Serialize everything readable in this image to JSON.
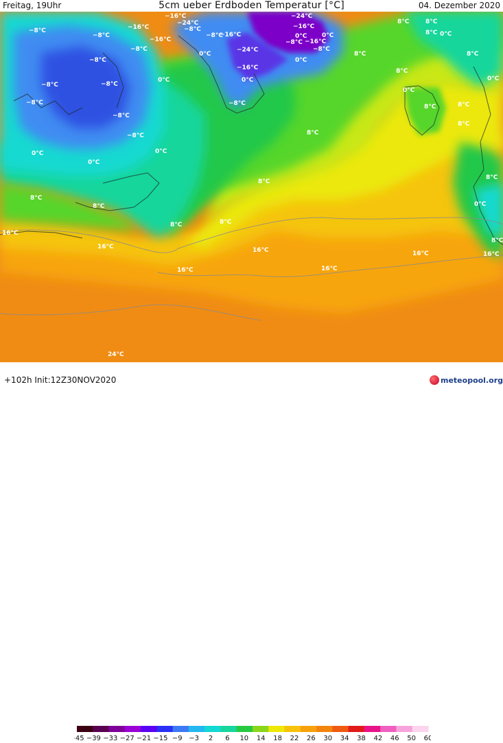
{
  "header": {
    "left_text": "Freitag, 19Uhr",
    "title": "5cm ueber Erdboden Temperatur [°C]",
    "date": "04. Dezember 2020"
  },
  "map": {
    "labels": [
      "−24°C",
      "−16°C",
      "−8°C",
      "0°C",
      "8°C",
      "16°C",
      "24°C"
    ],
    "palette": {
      "cold_purple": "#7c00c8",
      "deep_blue": "#2e51e2",
      "blue": "#3f8cf2",
      "cyan": "#12d9d1",
      "teal": "#19d69b",
      "green": "#23c84a",
      "light_green": "#57d62a",
      "lime": "#c9e812",
      "yellow": "#ece807",
      "gold": "#f5c40c",
      "orange": "#f7a50c",
      "dark_orange": "#f08c14"
    }
  },
  "legend": {
    "ticks": [
      "−45",
      "−39",
      "−33",
      "−27",
      "−21",
      "−15",
      "−9",
      "−3",
      "2",
      "6",
      "10",
      "14",
      "18",
      "22",
      "26",
      "30",
      "34",
      "38",
      "42",
      "46",
      "50",
      "60"
    ],
    "colors": [
      "#3b0012",
      "#5a0050",
      "#80009a",
      "#9b00d6",
      "#5a00f5",
      "#2a30f5",
      "#3c7af5",
      "#24b8f0",
      "#12d9d1",
      "#17d69d",
      "#27c941",
      "#8ad61b",
      "#ede807",
      "#f7c20a",
      "#f7a20c",
      "#f2850e",
      "#ef5b10",
      "#e31a1a",
      "#e8128a",
      "#f060c0",
      "#f8a4dc",
      "#fcd4ee"
    ]
  },
  "footer": {
    "run_info": "+102h Init:12Z30NOV2020",
    "brand": "meteopool.org"
  }
}
